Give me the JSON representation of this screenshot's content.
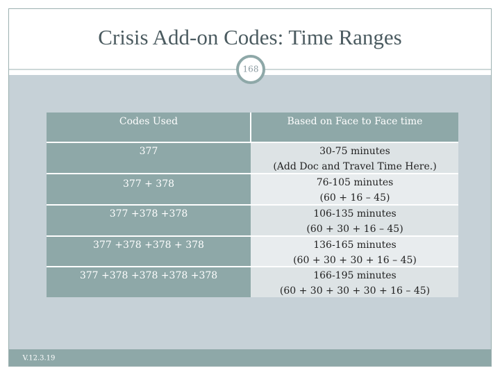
{
  "header": {
    "title": "Crisis Add-on Codes: Time Ranges",
    "slide_number": "168"
  },
  "table": {
    "columns": [
      "Codes Used",
      "Based on Face to Face time"
    ],
    "rows": [
      {
        "codes": "377",
        "time": "30-75 minutes",
        "detail": "(Add Doc and Travel Time Here.)"
      },
      {
        "codes": "377 + 378",
        "time": "76-105 minutes",
        "detail": "(60 + 16 – 45)"
      },
      {
        "codes": "377 +378 +378",
        "time": "106-135 minutes",
        "detail": "(60 + 30 + 16 – 45)"
      },
      {
        "codes": "377 +378 +378 + 378",
        "time": "136-165 minutes",
        "detail": "(60 + 30 + 30 + 16 – 45)"
      },
      {
        "codes": "377 +378 +378 +378 +378",
        "time": "166-195 minutes",
        "detail": "(60 + 30 + 30 + 30 + 16 – 45)"
      }
    ]
  },
  "footer": {
    "version": "V.12.3.19"
  }
}
